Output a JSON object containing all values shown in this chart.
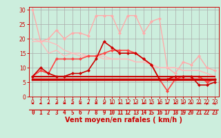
{
  "background_color": "#cceedd",
  "grid_color": "#aaaaaa",
  "xlabel": "Vent moyen/en rafales ( km/h )",
  "xlabel_color": "#cc0000",
  "xlabel_fontsize": 7,
  "tick_color": "#cc0000",
  "xlim": [
    -0.5,
    23.5
  ],
  "ylim": [
    0,
    31
  ],
  "yticks": [
    0,
    5,
    10,
    15,
    20,
    25,
    30
  ],
  "xticks": [
    0,
    1,
    2,
    3,
    4,
    5,
    6,
    7,
    8,
    9,
    10,
    11,
    12,
    13,
    14,
    15,
    16,
    17,
    18,
    19,
    20,
    21,
    22,
    23
  ],
  "series": [
    {
      "x": [
        0,
        1,
        2,
        3,
        4,
        5,
        6,
        7,
        8,
        9,
        10,
        11,
        12,
        13,
        14,
        15,
        16,
        17,
        18,
        19,
        20,
        21,
        22,
        23
      ],
      "y": [
        30,
        19,
        20,
        23,
        20,
        22,
        22,
        21,
        28,
        28,
        28,
        22,
        28,
        28,
        22,
        26,
        27,
        10,
        8,
        12,
        11,
        14,
        10,
        9
      ],
      "color": "#ffaaaa",
      "lw": 1.0,
      "marker": "D",
      "markersize": 2
    },
    {
      "x": [
        0,
        1,
        2,
        3,
        4,
        5,
        6,
        7,
        8,
        9,
        10,
        11,
        12,
        13,
        14,
        15,
        16,
        17,
        18,
        19,
        20,
        21,
        22,
        23
      ],
      "y": [
        20,
        19,
        15,
        16,
        14,
        15,
        14,
        14,
        14,
        13,
        13,
        13,
        13,
        12,
        12,
        11,
        10,
        10,
        10,
        9,
        9,
        9,
        8,
        7
      ],
      "color": "#ffbbbb",
      "lw": 1.0,
      "marker": null
    },
    {
      "x": [
        0,
        1,
        2,
        3,
        4,
        5,
        6,
        7,
        8,
        9,
        10,
        11,
        12,
        13,
        14,
        15,
        16,
        17,
        18,
        19,
        20,
        21,
        22,
        23
      ],
      "y": [
        19,
        19,
        19,
        18,
        16,
        15,
        15,
        14,
        14,
        14,
        13,
        13,
        13,
        12,
        12,
        11,
        10,
        10,
        10,
        9,
        9,
        9,
        8,
        7
      ],
      "color": "#ffbbbb",
      "lw": 1.0,
      "marker": null
    },
    {
      "x": [
        0,
        1,
        2,
        3,
        4,
        5,
        6,
        7,
        8,
        9,
        10,
        11,
        12,
        13,
        14,
        15,
        16,
        17,
        18,
        19,
        20,
        21,
        22,
        23
      ],
      "y": [
        7,
        9,
        8,
        13,
        13,
        13,
        13,
        14,
        14,
        15,
        16,
        16,
        16,
        15,
        13,
        11,
        6,
        2,
        6,
        7,
        7,
        7,
        5,
        6
      ],
      "color": "#ff4444",
      "lw": 1.2,
      "marker": "D",
      "markersize": 2
    },
    {
      "x": [
        0,
        1,
        2,
        3,
        4,
        5,
        6,
        7,
        8,
        9,
        10,
        11,
        12,
        13,
        14,
        15,
        16,
        17,
        18,
        19,
        20,
        21,
        22,
        23
      ],
      "y": [
        7,
        10,
        8,
        7,
        7,
        8,
        8,
        9,
        13,
        19,
        17,
        15,
        15,
        15,
        13,
        11,
        6,
        6,
        7,
        7,
        7,
        4,
        4,
        5
      ],
      "color": "#cc0000",
      "lw": 1.2,
      "marker": "D",
      "markersize": 2
    },
    {
      "x": [
        0,
        1,
        2,
        3,
        4,
        5,
        6,
        7,
        8,
        9,
        10,
        11,
        12,
        13,
        14,
        15,
        16,
        17,
        18,
        19,
        20,
        21,
        22,
        23
      ],
      "y": [
        6,
        6,
        6,
        6,
        6,
        6,
        6,
        6,
        6,
        6,
        6,
        6,
        6,
        6,
        6,
        6,
        6,
        6,
        6,
        6,
        6,
        6,
        6,
        6
      ],
      "color": "#cc0000",
      "lw": 2.5,
      "marker": null
    },
    {
      "x": [
        0,
        1,
        2,
        3,
        4,
        5,
        6,
        7,
        8,
        9,
        10,
        11,
        12,
        13,
        14,
        15,
        16,
        17,
        18,
        19,
        20,
        21,
        22,
        23
      ],
      "y": [
        6,
        6,
        6,
        6,
        6,
        6,
        6,
        6,
        6,
        6,
        6,
        6,
        6,
        6,
        6,
        6,
        6,
        6,
        6,
        6,
        6,
        6,
        6,
        6
      ],
      "color": "#cc0000",
      "lw": 1.5,
      "marker": null
    },
    {
      "x": [
        0,
        1,
        2,
        3,
        4,
        5,
        6,
        7,
        8,
        9,
        10,
        11,
        12,
        13,
        14,
        15,
        16,
        17,
        18,
        19,
        20,
        21,
        22,
        23
      ],
      "y": [
        7,
        7,
        7,
        7,
        7,
        7,
        7,
        7,
        7,
        7,
        7,
        7,
        7,
        7,
        7,
        7,
        7,
        7,
        7,
        7,
        7,
        7,
        7,
        7
      ],
      "color": "#cc0000",
      "lw": 1.5,
      "marker": null
    }
  ],
  "arrow_angles_deg": [
    200,
    200,
    210,
    220,
    210,
    200,
    210,
    205,
    210,
    210,
    215,
    210,
    210,
    210,
    210,
    200,
    225,
    200,
    200,
    205,
    210,
    205,
    50,
    65
  ]
}
